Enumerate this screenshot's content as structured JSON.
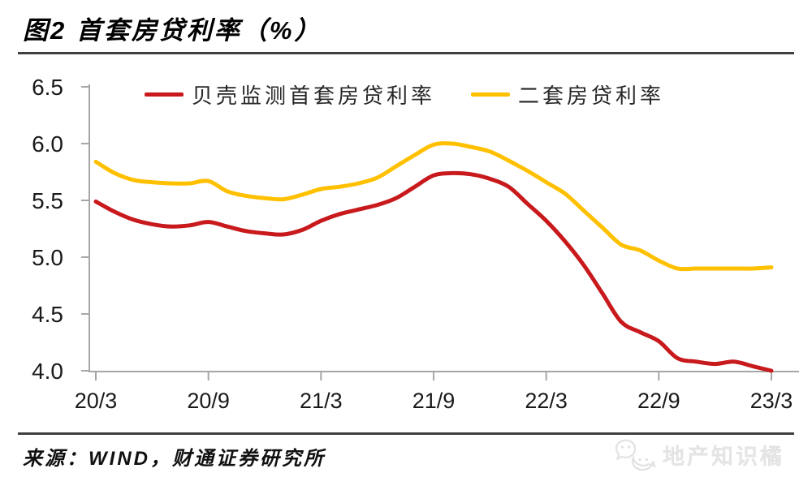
{
  "title": "图2  首套房贷利率（%）",
  "source": "来源：WIND，财通证券研究所",
  "watermark": {
    "label": "地产知识橘",
    "icon": "wechat-icon"
  },
  "legend": {
    "items": [
      {
        "label": "贝壳监测首套房贷利率",
        "color": "#C8191C"
      },
      {
        "label": "二套房贷利率",
        "color": "#FFC000"
      }
    ]
  },
  "colors": {
    "first_home_line": "#C8191C",
    "second_home_line": "#FFC000",
    "axis": "#A6A6A6",
    "tick_text": "#1A1A1A",
    "divider": "#3F3F3F",
    "watermark": "#E7E7E7"
  },
  "chart_data": {
    "type": "line",
    "title": "首套房贷利率（%）",
    "xlabel": "",
    "ylabel": "",
    "ylim": [
      4.0,
      6.5
    ],
    "grid": false,
    "legend_position": "top",
    "y_tick_labels": [
      "6.5",
      "6.0",
      "5.5",
      "5.0",
      "4.5",
      "4.0"
    ],
    "x_tick_labels": [
      "20/3",
      "20/9",
      "21/3",
      "21/9",
      "22/3",
      "22/9",
      "23/3"
    ],
    "x_months": [
      "2020/3",
      "2020/4",
      "2020/5",
      "2020/6",
      "2020/7",
      "2020/8",
      "2020/9",
      "2020/10",
      "2020/11",
      "2020/12",
      "2021/1",
      "2021/2",
      "2021/3",
      "2021/4",
      "2021/5",
      "2021/6",
      "2021/7",
      "2021/8",
      "2021/9",
      "2021/10",
      "2021/11",
      "2021/12",
      "2022/1",
      "2022/2",
      "2022/3",
      "2022/4",
      "2022/5",
      "2022/6",
      "2022/7",
      "2022/8",
      "2022/9",
      "2022/10",
      "2022/11",
      "2022/12",
      "2023/1",
      "2023/2",
      "2023/3"
    ],
    "series": [
      {
        "name": "贝壳监测首套房贷利率",
        "color": "#C8191C",
        "values": [
          5.49,
          5.4,
          5.33,
          5.29,
          5.27,
          5.28,
          5.31,
          5.27,
          5.23,
          5.21,
          5.2,
          5.24,
          5.32,
          5.38,
          5.42,
          5.46,
          5.52,
          5.62,
          5.72,
          5.74,
          5.73,
          5.69,
          5.62,
          5.47,
          5.32,
          5.14,
          4.93,
          4.68,
          4.43,
          4.34,
          4.26,
          4.11,
          4.08,
          4.06,
          4.08,
          4.04,
          4.0
        ]
      },
      {
        "name": "二套房贷利率",
        "color": "#FFC000",
        "values": [
          5.84,
          5.74,
          5.68,
          5.66,
          5.65,
          5.65,
          5.67,
          5.58,
          5.54,
          5.52,
          5.51,
          5.55,
          5.6,
          5.62,
          5.65,
          5.7,
          5.8,
          5.9,
          5.99,
          6.0,
          5.97,
          5.93,
          5.85,
          5.76,
          5.66,
          5.56,
          5.41,
          5.26,
          5.11,
          5.06,
          4.97,
          4.9,
          4.9,
          4.9,
          4.9,
          4.9,
          4.91
        ]
      }
    ]
  }
}
